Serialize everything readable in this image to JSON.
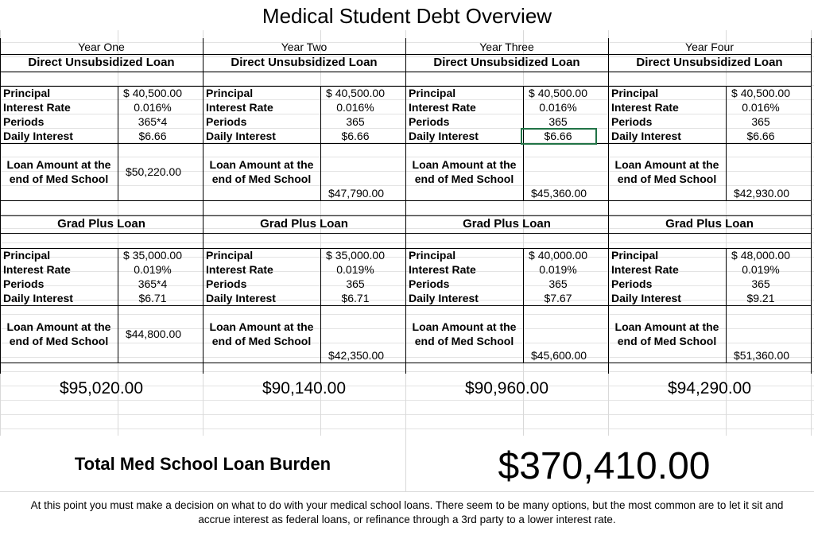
{
  "title": "Medical Student Debt Overview",
  "years": [
    {
      "year": "Year One",
      "direct": {
        "title": "Direct Unsubsidized Loan",
        "rows": [
          [
            "Principal",
            "$ 40,500.00"
          ],
          [
            "Interest Rate",
            "0.016%"
          ],
          [
            "Periods",
            "365*4"
          ],
          [
            "Daily Interest",
            "$6.66"
          ]
        ],
        "amount_label": [
          "Loan Amount at the",
          "end of Med School"
        ],
        "amount": "$50,220.00"
      },
      "grad": {
        "title": "Grad Plus Loan",
        "rows": [
          [
            "Principal",
            "$ 35,000.00"
          ],
          [
            "Interest Rate",
            "0.019%"
          ],
          [
            "Periods",
            "365*4"
          ],
          [
            "Daily Interest",
            "$6.71"
          ]
        ],
        "amount_label": [
          "Loan Amount at the",
          "end of Med School"
        ],
        "amount": "$44,800.00"
      },
      "total": "$95,020.00"
    },
    {
      "year": "Year Two",
      "direct": {
        "title": "Direct Unsubsidized Loan",
        "rows": [
          [
            "Principal",
            "$ 40,500.00"
          ],
          [
            "Interest Rate",
            "0.016%"
          ],
          [
            "Periods",
            "365"
          ],
          [
            "Daily Interest",
            "$6.66"
          ]
        ],
        "amount_label": [
          "Loan Amount at the",
          "end of Med School"
        ],
        "amount": "$47,790.00"
      },
      "grad": {
        "title": "Grad Plus Loan",
        "rows": [
          [
            "Principal",
            "$ 35,000.00"
          ],
          [
            "Interest Rate",
            "0.019%"
          ],
          [
            "Periods",
            "365"
          ],
          [
            "Daily Interest",
            "$6.71"
          ]
        ],
        "amount_label": [
          "Loan Amount at the",
          "end of Med School"
        ],
        "amount": "$42,350.00"
      },
      "total": "$90,140.00"
    },
    {
      "year": "Year Three",
      "direct": {
        "title": "Direct Unsubsidized Loan",
        "rows": [
          [
            "Principal",
            "$ 40,500.00"
          ],
          [
            "Interest Rate",
            "0.016%"
          ],
          [
            "Periods",
            "365"
          ],
          [
            "Daily Interest",
            "$6.66"
          ]
        ],
        "amount_label": [
          "Loan Amount at the",
          "end of Med School"
        ],
        "amount": "$45,360.00"
      },
      "grad": {
        "title": "Grad Plus Loan",
        "rows": [
          [
            "Principal",
            "$ 40,000.00"
          ],
          [
            "Interest Rate",
            "0.019%"
          ],
          [
            "Periods",
            "365"
          ],
          [
            "Daily Interest",
            "$7.67"
          ]
        ],
        "amount_label": [
          "Loan Amount at the",
          "end of Med School"
        ],
        "amount": "$45,600.00"
      },
      "total": "$90,960.00"
    },
    {
      "year": "Year Four",
      "direct": {
        "title": "Direct Unsubsidized Loan",
        "rows": [
          [
            "Principal",
            "$ 40,500.00"
          ],
          [
            "Interest Rate",
            "0.016%"
          ],
          [
            "Periods",
            "365"
          ],
          [
            "Daily Interest",
            "$6.66"
          ]
        ],
        "amount_label": [
          "Loan Amount at the",
          "end of Med School"
        ],
        "amount": "$42,930.00"
      },
      "grad": {
        "title": "Grad Plus Loan",
        "rows": [
          [
            "Principal",
            "$ 48,000.00"
          ],
          [
            "Interest Rate",
            "0.019%"
          ],
          [
            "Periods",
            "365"
          ],
          [
            "Daily Interest",
            "$9.21"
          ]
        ],
        "amount_label": [
          "Loan Amount at the",
          "end of Med School"
        ],
        "amount": "$51,360.00"
      },
      "total": "$94,290.00"
    }
  ],
  "grand": {
    "label": "Total Med School Loan Burden",
    "value": "$370,410.00"
  },
  "footer": [
    "At this point you must make a decision on what to do with your medical school loans. There seem to be many options, but the most common are to let it sit and",
    "accrue interest as federal loans, or refinance through a 3rd party to a lower interest rate."
  ]
}
